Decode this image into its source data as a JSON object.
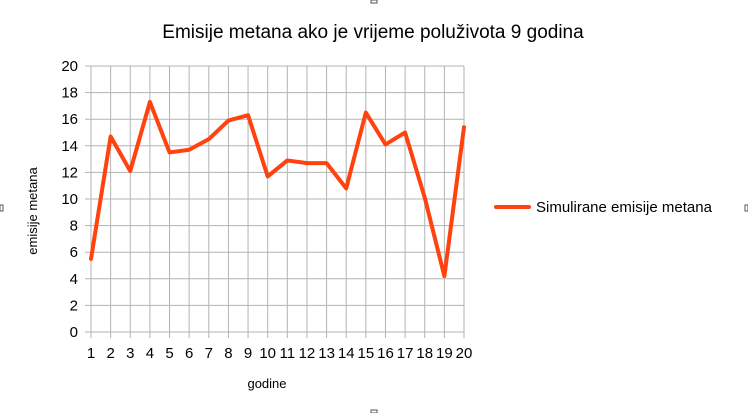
{
  "chart_data": {
    "type": "line",
    "title": "Emisije metana ako je vrijeme poluživota 9 godina",
    "xlabel": "godine",
    "ylabel": "emisije metana",
    "categories": [
      "1",
      "2",
      "3",
      "4",
      "5",
      "6",
      "7",
      "8",
      "9",
      "10",
      "11",
      "12",
      "13",
      "14",
      "15",
      "16",
      "17",
      "18",
      "19",
      "20"
    ],
    "series": [
      {
        "name": "Simulirane emisije metana",
        "color": "#ff420e",
        "values": [
          5.5,
          14.7,
          12.1,
          17.3,
          13.5,
          13.7,
          14.5,
          15.9,
          16.3,
          11.7,
          12.9,
          12.7,
          12.7,
          10.8,
          16.5,
          14.1,
          15.0,
          10.1,
          4.2,
          15.4
        ]
      }
    ],
    "ylim": [
      0,
      20
    ],
    "yticks": [
      0,
      2,
      4,
      6,
      8,
      10,
      12,
      14,
      16,
      18,
      20
    ],
    "grid": true,
    "legend": "right"
  }
}
